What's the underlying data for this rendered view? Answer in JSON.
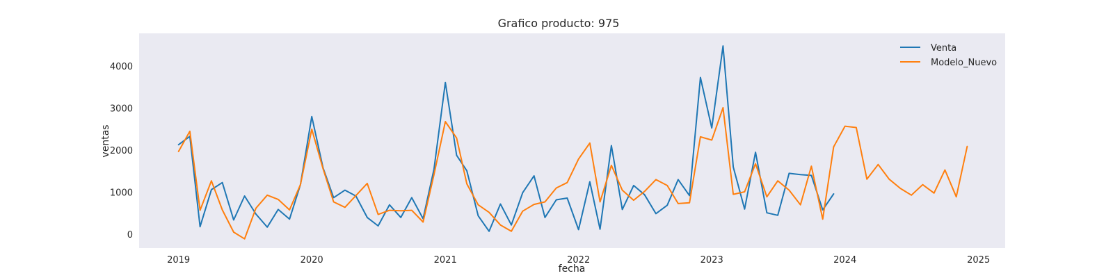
{
  "chart_data": {
    "type": "line",
    "title": "Grafico producto: 975",
    "xlabel": "fecha",
    "ylabel": "ventas",
    "xlim": [
      "2018-09-15",
      "2025-03-15"
    ],
    "ylim": [
      -330,
      4780
    ],
    "x_ticks": [
      "2019",
      "2020",
      "2021",
      "2022",
      "2023",
      "2024",
      "2025"
    ],
    "y_ticks": [
      0,
      1000,
      2000,
      3000,
      4000
    ],
    "grid": false,
    "legend": "top-right",
    "background": "#eaeaf2",
    "series": [
      {
        "name": "Venta",
        "color": "#1f77b4",
        "start": "2019-01",
        "values": [
          2130,
          2330,
          180,
          1060,
          1230,
          340,
          910,
          480,
          170,
          590,
          360,
          1180,
          2800,
          1580,
          870,
          1050,
          910,
          400,
          200,
          700,
          400,
          870,
          370,
          1550,
          3610,
          1880,
          1510,
          440,
          70,
          720,
          220,
          990,
          1390,
          400,
          820,
          860,
          110,
          1250,
          120,
          2110,
          590,
          1160,
          940,
          490,
          690,
          1300,
          920,
          3730,
          2530,
          4480,
          1600,
          600,
          1950,
          510,
          450,
          1450,
          1420,
          1400,
          580,
          960
        ]
      },
      {
        "name": "Modelo_Nuevo",
        "color": "#ff7f0e",
        "start": "2019-01",
        "values": [
          1970,
          2450,
          570,
          1270,
          580,
          50,
          -110,
          620,
          930,
          830,
          580,
          1180,
          2500,
          1560,
          770,
          640,
          920,
          1210,
          470,
          570,
          560,
          570,
          290,
          1420,
          2680,
          2290,
          1200,
          700,
          520,
          220,
          70,
          550,
          710,
          770,
          1100,
          1230,
          1790,
          2170,
          770,
          1640,
          1050,
          810,
          1020,
          1300,
          1160,
          730,
          750,
          2320,
          2240,
          3010,
          950,
          1010,
          1680,
          890,
          1270,
          1050,
          700,
          1620,
          360,
          2080,
          2570,
          2540,
          1310,
          1660,
          1310,
          1090,
          930,
          1180,
          980,
          1530,
          890,
          2090
        ]
      }
    ]
  }
}
